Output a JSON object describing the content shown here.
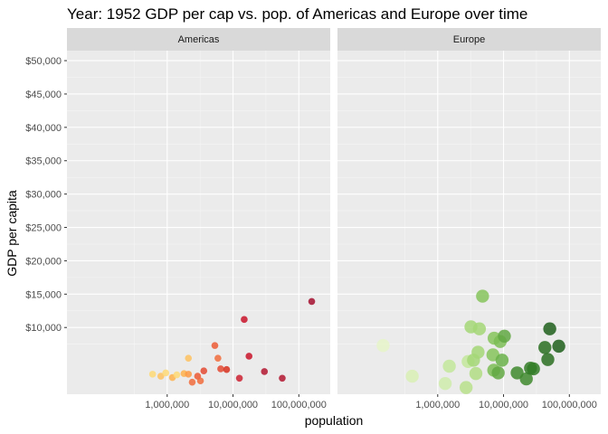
{
  "chart_data": {
    "type": "scatter",
    "title": "Year: 1952   GDP per cap vs. pop. of Americas and Europe over time",
    "xlabel": "population",
    "ylabel": "GDP per capita",
    "x_scale": "log10",
    "xlim": [
      30000,
      300000000
    ],
    "ylim": [
      0,
      51500
    ],
    "x_ticks": [
      {
        "value": 1000000,
        "label": "1,000,000"
      },
      {
        "value": 10000000,
        "label": "10,000,000"
      },
      {
        "value": 100000000,
        "label": "100,000,000"
      }
    ],
    "y_ticks": [
      {
        "value": 10000,
        "label": "$10,000"
      },
      {
        "value": 15000,
        "label": "$15,000"
      },
      {
        "value": 20000,
        "label": "$20,000"
      },
      {
        "value": 25000,
        "label": "$25,000"
      },
      {
        "value": 30000,
        "label": "$30,000"
      },
      {
        "value": 35000,
        "label": "$35,000"
      },
      {
        "value": 40000,
        "label": "$40,000"
      },
      {
        "value": 45000,
        "label": "$45,000"
      },
      {
        "value": 50000,
        "label": "$50,000"
      }
    ],
    "grid": true,
    "legend": "none",
    "panels": [
      {
        "name": "Americas",
        "points": [
          {
            "x": 600000,
            "y": 3000,
            "color": "#fed976"
          },
          {
            "x": 800000,
            "y": 2700,
            "color": "#fec260"
          },
          {
            "x": 950000,
            "y": 3200,
            "color": "#fed976"
          },
          {
            "x": 1200000,
            "y": 2500,
            "color": "#feb24c"
          },
          {
            "x": 1400000,
            "y": 2900,
            "color": "#fed976"
          },
          {
            "x": 1800000,
            "y": 3100,
            "color": "#feb24c"
          },
          {
            "x": 2100000,
            "y": 5400,
            "color": "#fec260"
          },
          {
            "x": 2100000,
            "y": 3000,
            "color": "#fd9a44"
          },
          {
            "x": 2400000,
            "y": 1800,
            "color": "#f16c3c"
          },
          {
            "x": 2900000,
            "y": 2700,
            "color": "#ec5a35"
          },
          {
            "x": 3200000,
            "y": 2000,
            "color": "#f16c3c"
          },
          {
            "x": 3600000,
            "y": 3500,
            "color": "#e44a33"
          },
          {
            "x": 5300000,
            "y": 7300,
            "color": "#ec5a35"
          },
          {
            "x": 5900000,
            "y": 5400,
            "color": "#f16c3c"
          },
          {
            "x": 6500000,
            "y": 3800,
            "color": "#e44a33"
          },
          {
            "x": 8000000,
            "y": 3700,
            "color": "#d7301f"
          },
          {
            "x": 12500000,
            "y": 2400,
            "color": "#cc2232"
          },
          {
            "x": 14800000,
            "y": 11200,
            "color": "#c9142a"
          },
          {
            "x": 17500000,
            "y": 5700,
            "color": "#c9142a"
          },
          {
            "x": 30000000,
            "y": 3400,
            "color": "#b31630"
          },
          {
            "x": 56000000,
            "y": 2400,
            "color": "#b31630"
          },
          {
            "x": 157000000,
            "y": 13900,
            "color": "#a50f2f"
          }
        ]
      },
      {
        "name": "Europe",
        "points": [
          {
            "x": 148000,
            "y": 7300,
            "color": "#e6f5c9"
          },
          {
            "x": 410000,
            "y": 2700,
            "color": "#d9f0b5"
          },
          {
            "x": 1300000,
            "y": 1600,
            "color": "#cfecab"
          },
          {
            "x": 1500000,
            "y": 4200,
            "color": "#c3e79b"
          },
          {
            "x": 2700000,
            "y": 1000,
            "color": "#b9e18b"
          },
          {
            "x": 2900000,
            "y": 4900,
            "color": "#c3e79b"
          },
          {
            "x": 3200000,
            "y": 10100,
            "color": "#a5d777"
          },
          {
            "x": 3500000,
            "y": 5100,
            "color": "#a5d777"
          },
          {
            "x": 3800000,
            "y": 3100,
            "color": "#b2dd84"
          },
          {
            "x": 4100000,
            "y": 6300,
            "color": "#a5d777"
          },
          {
            "x": 4300000,
            "y": 9800,
            "color": "#a5d777"
          },
          {
            "x": 4800000,
            "y": 14700,
            "color": "#86c45c"
          },
          {
            "x": 6900000,
            "y": 5900,
            "color": "#86c45c"
          },
          {
            "x": 7100000,
            "y": 3600,
            "color": "#7bbd55"
          },
          {
            "x": 7200000,
            "y": 8400,
            "color": "#86c45c"
          },
          {
            "x": 8300000,
            "y": 3200,
            "color": "#62a843"
          },
          {
            "x": 8900000,
            "y": 7900,
            "color": "#7bbd55"
          },
          {
            "x": 9500000,
            "y": 5100,
            "color": "#6ab14a"
          },
          {
            "x": 10300000,
            "y": 8700,
            "color": "#62a843"
          },
          {
            "x": 16100000,
            "y": 3200,
            "color": "#3f8a2e"
          },
          {
            "x": 22200000,
            "y": 2300,
            "color": "#3f8a2e"
          },
          {
            "x": 25700000,
            "y": 3900,
            "color": "#337d27"
          },
          {
            "x": 28500000,
            "y": 3800,
            "color": "#337d27"
          },
          {
            "x": 42500000,
            "y": 7000,
            "color": "#2a6f21"
          },
          {
            "x": 47100000,
            "y": 5200,
            "color": "#2a6f21"
          },
          {
            "x": 50400000,
            "y": 9800,
            "color": "#1f5f1b"
          },
          {
            "x": 69100000,
            "y": 7200,
            "color": "#1f5f1b"
          }
        ]
      }
    ]
  }
}
